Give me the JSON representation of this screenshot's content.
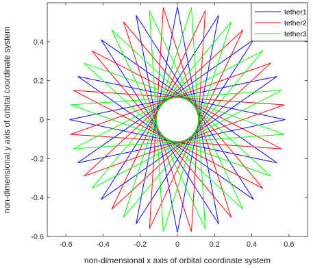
{
  "chart_data": {
    "type": "line",
    "xlabel": "non-dimensional x axis of  orbital coordinate system",
    "ylabel": "non-dimensional y axis of  orbital coordinate system",
    "xlim": [
      -0.7,
      0.7
    ],
    "ylim": [
      -0.6,
      0.6
    ],
    "xticks": [
      -0.6,
      -0.4,
      -0.2,
      0,
      0.2,
      0.4,
      0.6
    ],
    "xtick_labels": [
      "-0.6",
      "-0.4",
      "-0.2",
      "0",
      "0.2",
      "0.4",
      "0.6"
    ],
    "yticks": [
      -0.6,
      -0.4,
      -0.2,
      0,
      0.2,
      0.4
    ],
    "ytick_labels": [
      "-0.6",
      "-0.4",
      "-0.2",
      "0",
      "0.2",
      "0.4"
    ],
    "grid": false,
    "legend_position": "top-right",
    "series": [
      {
        "name": "tether1",
        "color": "#0000ff",
        "outer_radius": 0.58,
        "inner_radius": 0.29,
        "vertices": 16,
        "step": 7,
        "phase_deg": 0
      },
      {
        "name": "tether2",
        "color": "#ff0000",
        "outer_radius": 0.58,
        "inner_radius": 0.29,
        "vertices": 16,
        "step": 7,
        "phase_deg": 7.5
      },
      {
        "name": "tether3",
        "color": "#00ff00",
        "outer_radius": 0.58,
        "inner_radius": 0.29,
        "vertices": 16,
        "step": 7,
        "phase_deg": 15
      }
    ]
  }
}
